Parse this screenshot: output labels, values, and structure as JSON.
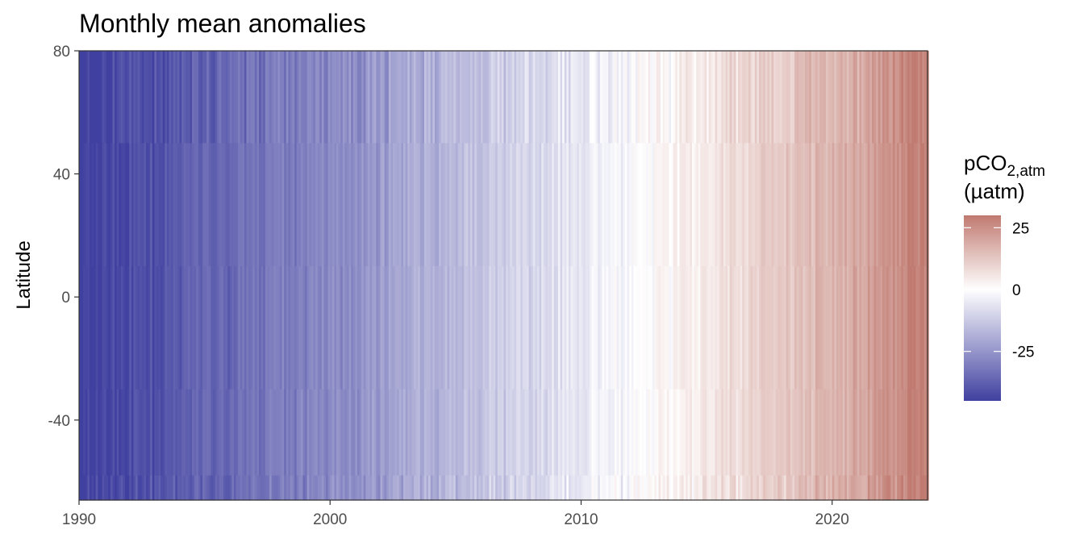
{
  "chart_data": {
    "type": "heatmap",
    "title": "Monthly mean anomalies",
    "xlabel": "",
    "ylabel": "Latitude",
    "xlim": [
      1990,
      2023.8
    ],
    "ylim": [
      -66,
      80
    ],
    "x_ticks": [
      1990,
      2000,
      2010,
      2020
    ],
    "y_ticks": [
      80,
      40,
      0,
      -40
    ],
    "x_tick_labels": [
      "1990",
      "2000",
      "2010",
      "2020"
    ],
    "y_tick_labels": [
      "80",
      "40",
      "0",
      "-40"
    ],
    "grid": false,
    "x_resolution": "monthly",
    "trend_anchors": [
      {
        "year": 1990,
        "value": -46
      },
      {
        "year": 2000,
        "value": -28
      },
      {
        "year": 2010,
        "value": -5
      },
      {
        "year": 2013,
        "value": 0
      },
      {
        "year": 2020,
        "value": 17
      },
      {
        "year": 2023.8,
        "value": 29
      }
    ],
    "legend": {
      "title_main": "pCO",
      "title_sub": "2,atm",
      "title_unit": "(µatm)",
      "position": "right",
      "range": [
        -45,
        30
      ],
      "ticks": [
        25,
        0,
        -25
      ],
      "tick_labels": [
        "25",
        "0",
        "-25"
      ],
      "colors": {
        "low": "#4040A0",
        "mid": "#FFFFFF",
        "high": "#C07A70"
      }
    }
  }
}
